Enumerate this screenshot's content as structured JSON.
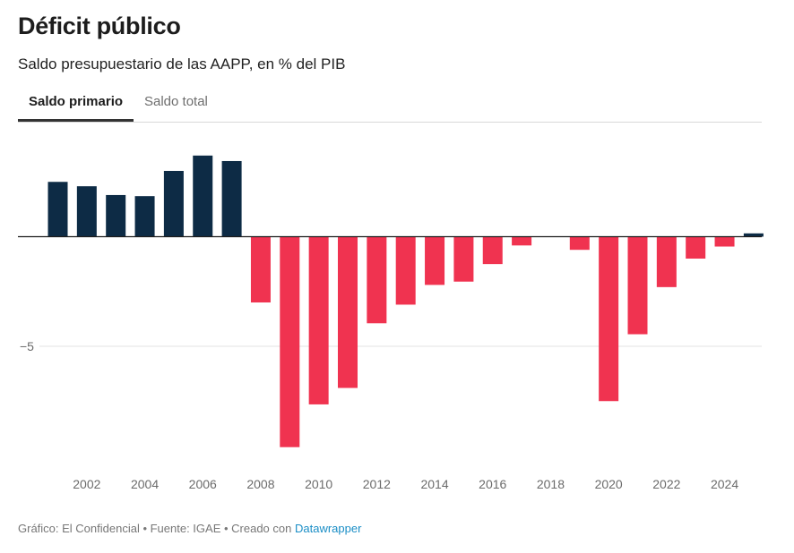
{
  "title": "Déficit público",
  "subtitle": "Saldo presupuestario de las AAPP, en % del PIB",
  "tabs": [
    {
      "label": "Saldo primario",
      "active": true
    },
    {
      "label": "Saldo total",
      "active": false
    }
  ],
  "footer": {
    "prefix": "Gráfico: El Confidencial • Fuente: IGAE • Creado con ",
    "link": "Datawrapper"
  },
  "colors": {
    "positive": "#0d2b45",
    "negative": "#f03350",
    "grid": "#e3e3e3",
    "baseline": "#1d1d1d"
  },
  "chart_data": {
    "type": "bar",
    "title": "Déficit público",
    "subtitle": "Saldo presupuestario de las AAPP, en % del PIB",
    "series_name": "Saldo primario",
    "categories": [
      2001,
      2002,
      2003,
      2004,
      2005,
      2006,
      2007,
      2008,
      2009,
      2010,
      2011,
      2012,
      2013,
      2014,
      2015,
      2016,
      2017,
      2018,
      2019,
      2020,
      2021,
      2022,
      2023,
      2024,
      2025
    ],
    "values": [
      2.5,
      2.3,
      1.9,
      1.85,
      3.0,
      3.7,
      3.45,
      -3.0,
      -9.6,
      -7.65,
      -6.9,
      -3.95,
      -3.1,
      -2.2,
      -2.05,
      -1.25,
      -0.4,
      0.0,
      -0.6,
      -7.5,
      -4.45,
      -2.3,
      -1.0,
      -0.45,
      0.15
    ],
    "x_tick_labels": [
      "2002",
      "2004",
      "2006",
      "2008",
      "2010",
      "2012",
      "2014",
      "2016",
      "2018",
      "2020",
      "2022",
      "2024"
    ],
    "y_ticks": [
      {
        "value": -5,
        "label": "−5"
      }
    ],
    "ylim": [
      -10.5,
      4.5
    ],
    "xlabel": "",
    "ylabel": "",
    "grid": true
  }
}
